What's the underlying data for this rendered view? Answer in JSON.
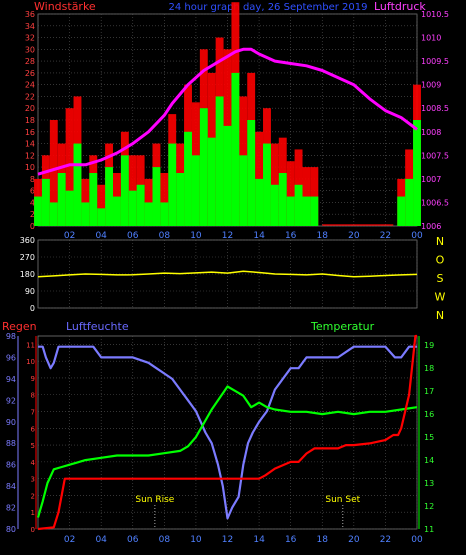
{
  "header": {
    "left_label": "Windstärke",
    "center_label": "24 hour graph day, 26 September 2019",
    "right_label": "Luftdruck"
  },
  "colors": {
    "background": "#000000",
    "wind_avg": "#00ff00",
    "wind_gust": "#ff0000",
    "pressure": "#ff00ff",
    "direction": "#ffff00",
    "humidity": "#7b7bff",
    "temperature": "#00ff00",
    "rain": "#ff0000",
    "grid": "#555555",
    "axis_text_left": "#ff4040",
    "axis_text_right": "#ff40ff",
    "axis_time": "#5080ff",
    "direction_labels": "#ffff00"
  },
  "x_ticks": [
    "02",
    "04",
    "06",
    "08",
    "10",
    "12",
    "14",
    "16",
    "18",
    "20",
    "22",
    "00"
  ],
  "chart_data": [
    {
      "type": "line",
      "name": "wind-pressure",
      "x_range_hours": [
        0,
        24
      ],
      "left_axis": {
        "ticks": [
          0,
          2,
          4,
          6,
          8,
          10,
          12,
          14,
          16,
          18,
          20,
          22,
          24,
          26,
          28,
          30,
          32,
          34,
          36
        ],
        "range": [
          0,
          36
        ]
      },
      "right_axis": {
        "ticks": [
          1006,
          1006.5,
          1007,
          1007.5,
          1008,
          1008.5,
          1009,
          1009.5,
          1010,
          1010.5
        ],
        "range": [
          1006,
          1010.5
        ]
      },
      "series": [
        {
          "axis": "right",
          "x": [
            0,
            1,
            2,
            3,
            4,
            5,
            6,
            7,
            8,
            8.5,
            9,
            9.5,
            10,
            10.5,
            11,
            11.5,
            12,
            12.5,
            13,
            13.5,
            14,
            15,
            16,
            17,
            18,
            19,
            20,
            21,
            22,
            23,
            24
          ],
          "values": [
            1007.1,
            1007.2,
            1007.3,
            1007.3,
            1007.4,
            1007.55,
            1007.75,
            1008.0,
            1008.35,
            1008.6,
            1008.8,
            1009.0,
            1009.15,
            1009.3,
            1009.4,
            1009.5,
            1009.6,
            1009.7,
            1009.75,
            1009.75,
            1009.65,
            1009.5,
            1009.45,
            1009.4,
            1009.3,
            1009.15,
            1009.0,
            1008.7,
            1008.45,
            1008.3,
            1008.05
          ]
        },
        {
          "axis": "left",
          "x": [
            0,
            0.5,
            1,
            1.5,
            2,
            2.5,
            3,
            3.5,
            4,
            4.5,
            5,
            5.5,
            6,
            6.5,
            7,
            7.5,
            8,
            8.5,
            9,
            9.5,
            10,
            10.5,
            11,
            11.5,
            12,
            12.5,
            13,
            13.5,
            14,
            14.5,
            15,
            15.5,
            16,
            16.5,
            17,
            17.5,
            18,
            22.5,
            23,
            23.5,
            24
          ],
          "values": [
            5,
            8,
            4,
            9,
            6,
            14,
            4,
            9,
            3,
            10,
            5,
            12,
            6,
            7,
            4,
            10,
            4,
            14,
            9,
            16,
            12,
            20,
            15,
            22,
            17,
            26,
            12,
            18,
            8,
            14,
            7,
            9,
            5,
            7,
            5,
            5,
            0,
            0,
            5,
            8,
            18
          ]
        },
        {
          "axis": "left",
          "x": [
            0,
            0.5,
            1,
            1.5,
            2,
            2.5,
            3,
            3.5,
            4,
            4.5,
            5,
            5.5,
            6,
            6.5,
            7,
            7.5,
            8,
            8.5,
            9,
            9.5,
            10,
            10.5,
            11,
            11.5,
            12,
            12.5,
            13,
            13.5,
            14,
            14.5,
            15,
            15.5,
            16,
            16.5,
            17,
            17.5,
            18,
            22.5,
            23,
            23.5,
            24
          ],
          "values": [
            8,
            12,
            18,
            14,
            20,
            22,
            8,
            12,
            7,
            14,
            9,
            16,
            12,
            12,
            8,
            14,
            9,
            19,
            14,
            24,
            21,
            30,
            26,
            32,
            30,
            38,
            22,
            26,
            16,
            20,
            14,
            15,
            11,
            13,
            10,
            10,
            0,
            0,
            8,
            13,
            24
          ]
        }
      ]
    },
    {
      "type": "line",
      "name": "wind-direction",
      "x_range_hours": [
        0,
        24
      ],
      "left_axis": {
        "ticks": [
          0,
          90,
          180,
          270,
          360
        ],
        "range": [
          0,
          360
        ]
      },
      "right_labels": [
        "N",
        "W",
        "S",
        "O",
        "N"
      ],
      "series": [
        {
          "x": [
            0,
            1,
            2,
            3,
            4,
            5,
            6,
            7,
            8,
            9,
            10,
            11,
            12,
            13,
            14,
            15,
            16,
            17,
            18,
            19,
            20,
            21,
            22,
            23,
            24
          ],
          "values": [
            165,
            170,
            175,
            180,
            178,
            175,
            176,
            180,
            185,
            182,
            186,
            190,
            185,
            195,
            188,
            180,
            178,
            175,
            180,
            172,
            165,
            168,
            172,
            175,
            178
          ]
        }
      ]
    },
    {
      "type": "line",
      "name": "rain-humidity-temperature",
      "x_range_hours": [
        0,
        24
      ],
      "left_axis_rain": {
        "ticks": [
          0,
          1,
          2,
          3,
          4,
          5,
          6,
          7,
          8,
          9,
          10,
          11
        ],
        "range": [
          0,
          11.5
        ]
      },
      "left_axis_humidity": {
        "ticks": [
          80,
          82,
          84,
          86,
          88,
          90,
          92,
          94,
          96,
          98
        ],
        "range": [
          80,
          98
        ]
      },
      "right_axis_temperature": {
        "ticks": [
          11,
          12,
          13,
          14,
          15,
          16,
          17,
          18,
          19
        ],
        "range": [
          11,
          19.4
        ]
      },
      "labels": {
        "rain": "Regen",
        "humidity": "Luftfeuchte",
        "temperature": "Temperatur",
        "sunrise": "Sun Rise",
        "sunset": "Sun Set"
      },
      "sunrise_hour": 7.4,
      "sunset_hour": 19.3,
      "series": [
        {
          "key": "humidity",
          "x": [
            0,
            0.3,
            0.5,
            0.8,
            1.0,
            1.3,
            1.8,
            2.2,
            2.5,
            3.5,
            4.0,
            5.0,
            6.0,
            7.0,
            7.5,
            8.0,
            8.5,
            9.0,
            9.5,
            10.0,
            10.3,
            10.6,
            11.0,
            11.4,
            11.7,
            12.0,
            12.3,
            12.7,
            13.0,
            13.3,
            13.6,
            14.0,
            14.5,
            15.0,
            15.5,
            16.0,
            16.5,
            17.0,
            18.0,
            19.0,
            20.0,
            21.0,
            22.0,
            22.6,
            23.0,
            23.5,
            24.0
          ],
          "values": [
            97,
            97,
            96,
            95,
            95.5,
            97,
            97,
            97,
            97,
            97,
            96,
            96,
            96,
            95.5,
            95,
            94.5,
            94,
            93,
            92,
            91,
            90,
            89,
            88,
            86,
            84,
            81,
            82,
            83,
            86,
            88,
            89,
            90,
            91,
            93,
            94,
            95,
            95,
            96,
            96,
            96,
            97,
            97,
            97,
            96,
            96,
            97,
            97
          ]
        },
        {
          "key": "temperature",
          "x": [
            0,
            0.3,
            0.6,
            1.0,
            1.5,
            2.0,
            2.5,
            3.0,
            4.0,
            5.0,
            6.0,
            7.0,
            8.0,
            9.0,
            9.5,
            10.0,
            10.5,
            11.0,
            11.5,
            12.0,
            12.5,
            13.0,
            13.5,
            14.0,
            14.5,
            15.0,
            16.0,
            17.0,
            18.0,
            19.0,
            20.0,
            21.0,
            22.0,
            23.0,
            24.0
          ],
          "values": [
            11.5,
            12.2,
            13.0,
            13.6,
            13.7,
            13.8,
            13.9,
            14.0,
            14.1,
            14.2,
            14.2,
            14.2,
            14.3,
            14.4,
            14.6,
            15.0,
            15.6,
            16.2,
            16.7,
            17.2,
            17.0,
            16.8,
            16.3,
            16.5,
            16.3,
            16.2,
            16.1,
            16.1,
            16.0,
            16.1,
            16.0,
            16.1,
            16.1,
            16.2,
            16.3
          ]
        },
        {
          "key": "rain",
          "x": [
            0,
            1.0,
            1.3,
            1.7,
            2.0,
            14.0,
            14.4,
            15.0,
            16.0,
            16.5,
            17.0,
            17.5,
            18.0,
            19.0,
            19.5,
            20.0,
            21.0,
            22.0,
            22.5,
            22.8,
            23.0,
            23.5,
            23.9,
            24.0
          ],
          "values": [
            0,
            0.1,
            1.0,
            3.0,
            3.0,
            3.0,
            3.2,
            3.6,
            4.0,
            4.0,
            4.5,
            4.8,
            4.8,
            4.8,
            5.0,
            5.0,
            5.1,
            5.3,
            5.6,
            5.6,
            6.0,
            8.0,
            11.5,
            11.5
          ]
        }
      ]
    }
  ]
}
